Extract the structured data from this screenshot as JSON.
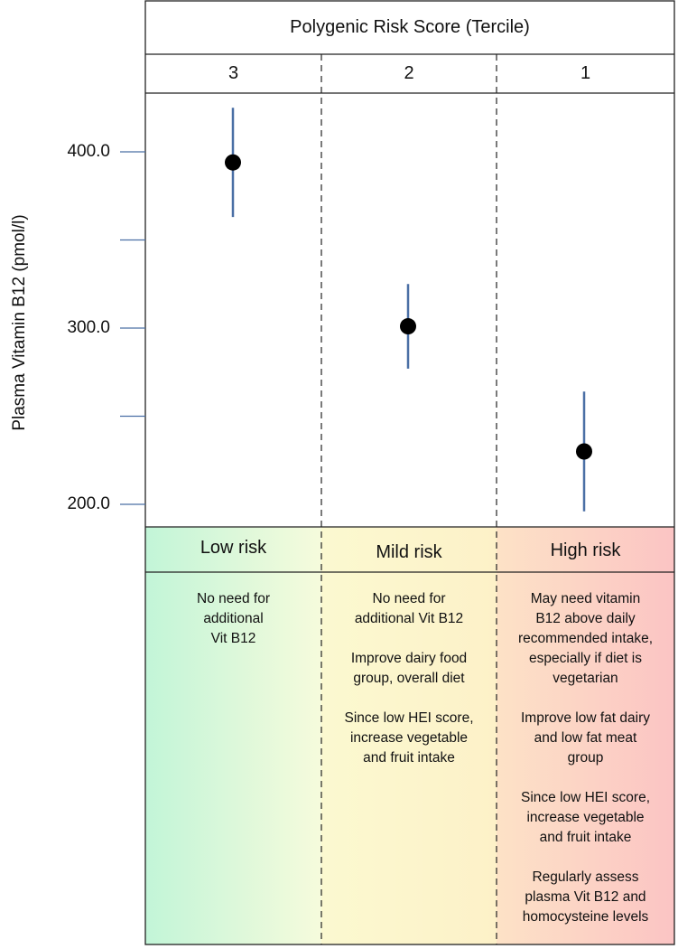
{
  "header": {
    "title": "Polygenic Risk Score (Tercile)"
  },
  "columns": [
    {
      "tercile": "3",
      "risk": "Low risk",
      "recommendations": [
        "No need for\nadditional\nVit B12"
      ]
    },
    {
      "tercile": "2",
      "risk": "Mild risk",
      "recommendations": [
        "No need for\nadditional Vit B12",
        "Improve dairy food\ngroup, overall diet",
        "Since low HEI score,\nincrease vegetable\nand fruit intake"
      ]
    },
    {
      "tercile": "1",
      "risk": "High risk",
      "recommendations": [
        "May need vitamin\nB12 above daily\nrecommended intake,\nespecially if diet is\nvegetarian",
        "Improve low fat dairy\nand low fat meat\ngroup",
        "Since low HEI score,\nincrease vegetable\nand fruit intake",
        "Regularly assess\nplasma Vit B12 and\nhomocysteine levels"
      ]
    }
  ],
  "colors": {
    "low": "#c8f5dc",
    "mild": "#fdf6c8",
    "high": "#fbcaca",
    "errorbar": "#4a6fa5",
    "point": "#000000"
  },
  "chart_data": {
    "type": "scatter",
    "ylabel": "Plasma Vitamin B12 (pmol/l)",
    "yticks": [
      "400.0",
      "300.0",
      "200.0"
    ],
    "ylim": [
      184,
      430
    ],
    "categories": [
      "3",
      "2",
      "1"
    ],
    "points": [
      {
        "x": "3",
        "y": 394,
        "low": 363,
        "high": 425
      },
      {
        "x": "2",
        "y": 301,
        "low": 277,
        "high": 325
      },
      {
        "x": "1",
        "y": 230,
        "low": 196,
        "high": 264
      }
    ]
  }
}
